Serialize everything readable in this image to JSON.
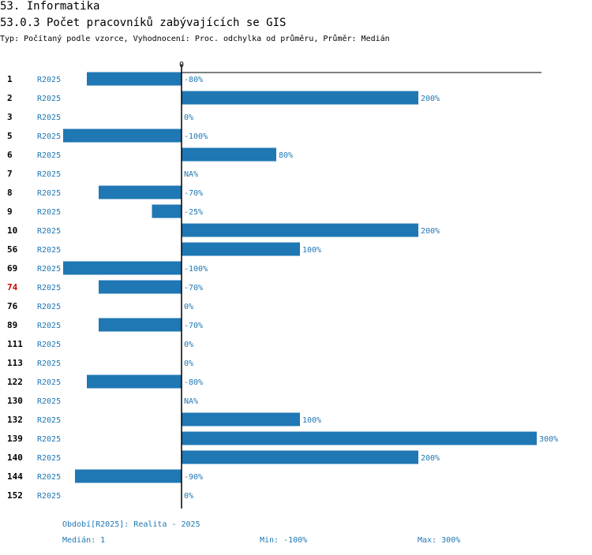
{
  "header": {
    "section": "53. Informatika",
    "title": "53.0.3 Počet pracovníků zabývajících se GIS",
    "subtitle": "Typ: Počítaný podle vzorce, Vyhodnocení: Proc. odchylka od průměru, Průměr: Medián"
  },
  "chart_data": {
    "type": "bar",
    "orientation": "horizontal",
    "zero_label": "0",
    "series_name": "R2025",
    "xlim": [
      -100,
      300
    ],
    "colors": {
      "bar": "#1f77b4",
      "highlight_label": "#cc0000"
    },
    "highlighted_category": "74",
    "categories": [
      "1",
      "2",
      "3",
      "5",
      "6",
      "7",
      "8",
      "9",
      "10",
      "56",
      "69",
      "74",
      "76",
      "89",
      "111",
      "113",
      "122",
      "130",
      "132",
      "139",
      "140",
      "144",
      "152"
    ],
    "values": [
      -80,
      200,
      0,
      -100,
      80,
      null,
      -70,
      -25,
      200,
      100,
      -100,
      -70,
      0,
      -70,
      0,
      0,
      -80,
      null,
      100,
      300,
      200,
      -90,
      0
    ],
    "labels": [
      "-80%",
      "200%",
      "0%",
      "-100%",
      "80%",
      "NA%",
      "-70%",
      "-25%",
      "200%",
      "100%",
      "-100%",
      "-70%",
      "0%",
      "-70%",
      "0%",
      "0%",
      "-80%",
      "NA%",
      "100%",
      "300%",
      "200%",
      "-90%",
      "0%"
    ]
  },
  "footer": {
    "period": "Období[R2025]: Realita - 2025",
    "median": "Medián: 1",
    "min": "Min: -100%",
    "max": "Max: 300%"
  }
}
